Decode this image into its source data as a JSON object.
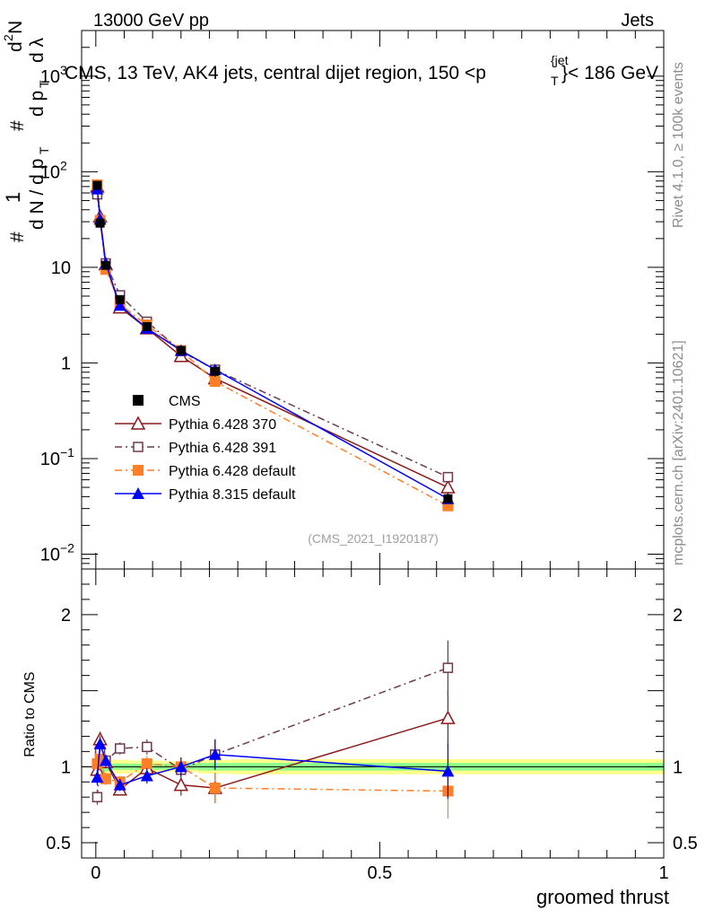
{
  "chart_data": {
    "type": "scatter",
    "header": {
      "left": "13000 GeV pp",
      "right": "Jets"
    },
    "title": {
      "main": "CMS, 13 TeV, AK4 jets, central dijet region, 150 <p",
      "sub": "T",
      "sup": "{jet",
      "tail": "}< 186 GeV"
    },
    "ylabel_main": {
      "hash1": "#",
      "one": "1",
      "den": "d N / d p",
      "den_sub": "T",
      "hash2": "#",
      "num": "d",
      "num_sup": "2",
      "num_N": "N",
      "den2": "d p",
      "den2_sub": "T",
      "den2_tail": "d λ"
    },
    "ylabel_ratio": "Ratio to CMS",
    "xlabel": "groomed thrust",
    "side_left": "Rivet 4.1.0, ≥ 100k events",
    "side_right": "mcplots.cern.ch [arXiv:2401.10621]",
    "analysis": "(CMS_2021_I1920187)",
    "main_ylim": [
      0.007,
      3000
    ],
    "ratio_ylim": [
      0.4,
      2.3
    ],
    "xlim": [
      -0.025,
      1.0
    ],
    "main_yticks": [
      {
        "v": 1000,
        "base": "10",
        "exp": "3"
      },
      {
        "v": 100,
        "base": "10",
        "exp": "2"
      },
      {
        "v": 10,
        "base": "10",
        "exp": ""
      },
      {
        "v": 1,
        "base": "1",
        "exp": ""
      },
      {
        "v": 0.1,
        "base": "10",
        "exp": "−1"
      },
      {
        "v": 0.01,
        "base": "10",
        "exp": "−2"
      }
    ],
    "ratio_yticks": [
      {
        "v": 2,
        "label": "2"
      },
      {
        "v": 1,
        "label": "1"
      },
      {
        "v": 0.5,
        "label": "0.5"
      }
    ],
    "xticks": [
      {
        "v": 0,
        "label": "0"
      },
      {
        "v": 0.5,
        "label": "0.5"
      },
      {
        "v": 1,
        "label": "1"
      }
    ],
    "bins": [
      [
        0,
        0.005
      ],
      [
        0.005,
        0.01
      ],
      [
        0.01,
        0.025
      ],
      [
        0.025,
        0.06
      ],
      [
        0.06,
        0.12
      ],
      [
        0.12,
        0.18
      ],
      [
        0.18,
        0.24
      ],
      [
        0.24,
        1.0
      ]
    ],
    "x": [
      0.0025,
      0.0075,
      0.0175,
      0.0425,
      0.09,
      0.15,
      0.21,
      0.62
    ],
    "ratio_band_stat": [
      0.08,
      0.08,
      0.06,
      0.04,
      0.04,
      0.04,
      0.05,
      0.05
    ],
    "ratio_band_tot": [
      0.18,
      0.2,
      0.15,
      0.09,
      0.08,
      0.07,
      0.09,
      0.1
    ],
    "data": {
      "name": "CMS",
      "values": [
        72,
        29,
        10.5,
        4.6,
        2.4,
        1.35,
        0.82,
        0.038
      ],
      "errors": [
        6,
        2.5,
        0.9,
        0.35,
        0.2,
        0.12,
        0.1,
        0.004
      ]
    },
    "series": [
      {
        "name": "Pythia 6.428 370",
        "color": "#8b1a1a",
        "marker": "triangle-open",
        "dash": "",
        "values": [
          70,
          34,
          10.8,
          3.8,
          2.3,
          1.18,
          0.69,
          0.05
        ],
        "ratio": [
          0.98,
          1.18,
          1.03,
          0.85,
          0.99,
          0.88,
          0.86,
          1.32
        ],
        "ratio_err": [
          0.05,
          0.05,
          0.04,
          0.04,
          0.05,
          0.07,
          0.1,
          0.18
        ]
      },
      {
        "name": "Pythia 6.428 391",
        "color": "#6b3a4e",
        "marker": "square-open",
        "dash": "8,4,2,4",
        "values": [
          58,
          31,
          11,
          5.1,
          2.7,
          1.33,
          0.85,
          0.064
        ],
        "ratio": [
          0.8,
          1.1,
          1.04,
          1.12,
          1.13,
          0.98,
          1.08,
          1.65
        ],
        "ratio_err": [
          0.05,
          0.05,
          0.04,
          0.04,
          0.05,
          0.06,
          0.1,
          0.18
        ]
      },
      {
        "name": "Pythia 6.428 default",
        "color": "#ff7f27",
        "marker": "square",
        "dash": "8,4,2,4",
        "values": [
          73,
          31,
          9.5,
          4.1,
          2.5,
          1.35,
          0.64,
          0.032
        ],
        "ratio": [
          1.02,
          1.05,
          0.92,
          0.9,
          1.02,
          1.0,
          0.86,
          0.84
        ],
        "ratio_err": [
          0.05,
          0.05,
          0.04,
          0.04,
          0.05,
          0.06,
          0.1,
          0.18
        ]
      },
      {
        "name": "Pythia 8.315 default",
        "color": "#0000ff",
        "marker": "triangle",
        "dash": "",
        "values": [
          66,
          32,
          11,
          4.0,
          2.3,
          1.35,
          0.85,
          0.038
        ],
        "ratio": [
          0.93,
          1.15,
          1.04,
          0.88,
          0.94,
          1.0,
          1.08,
          0.97
        ],
        "ratio_err": [
          0.05,
          0.05,
          0.04,
          0.04,
          0.05,
          0.06,
          0.1,
          0.18
        ]
      }
    ]
  }
}
